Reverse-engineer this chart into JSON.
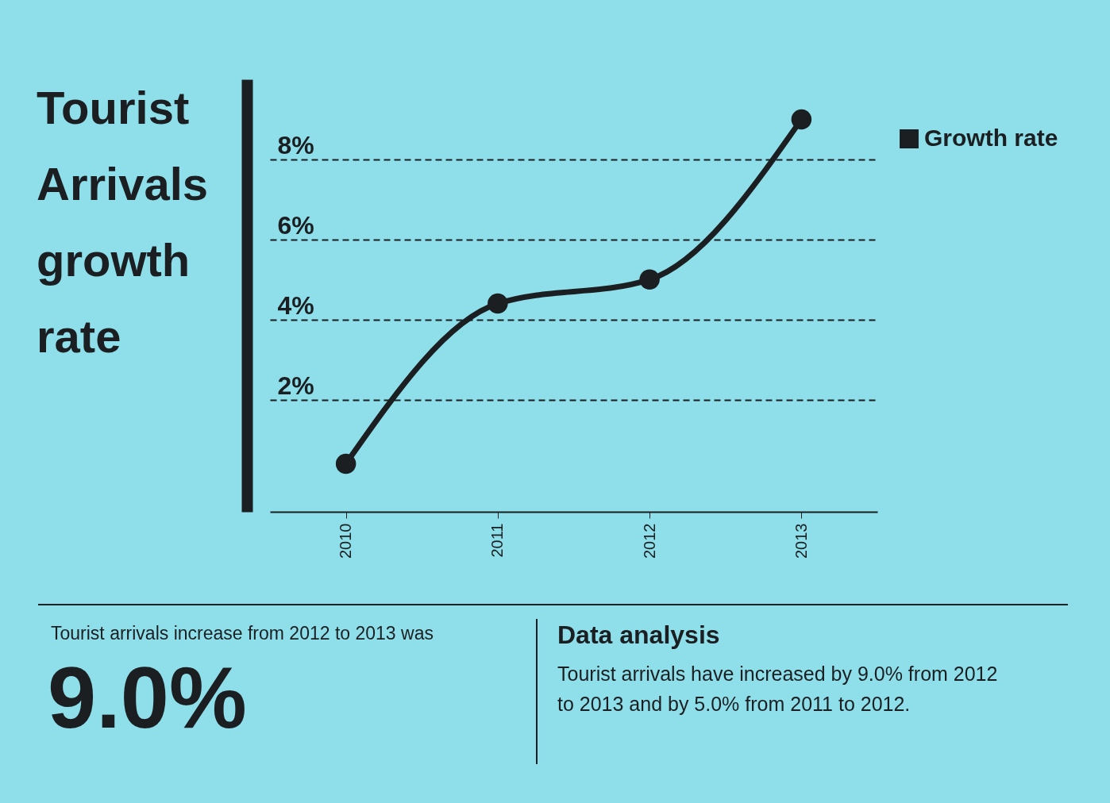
{
  "chart_data": {
    "type": "line",
    "title": "Tourist Arrivals growth rate",
    "categories": [
      "2010",
      "2011",
      "2012",
      "2013"
    ],
    "series": [
      {
        "name": "Growth rate",
        "color": "#1b1f21",
        "values": [
          0.4,
          4.4,
          5.0,
          9.0
        ]
      }
    ],
    "ylim": [
      -0.8,
      10
    ],
    "yticks": [
      {
        "value": 2,
        "label": "2%"
      },
      {
        "value": 4,
        "label": "4%"
      },
      {
        "value": 6,
        "label": "6%"
      },
      {
        "value": 8,
        "label": "8%"
      }
    ],
    "grid": "y",
    "legend": "top right",
    "marker": "circle",
    "line_style": "solid",
    "annotations": [
      "Tourist arrivals increase from 2012 to 2013 was",
      "9.0%",
      "Data analysis",
      "Tourist arrivals have increased by 9.0% from 2012 to 2013 and by 5.0% from 2011 to 2012."
    ]
  }
}
